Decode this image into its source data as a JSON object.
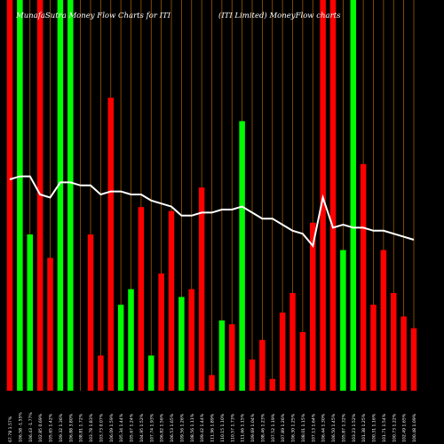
{
  "chart_data": {
    "type": "bar",
    "title_left": "MunafaSutra Money Flow  Charts for ITI",
    "title_right": "(ITI Limited) MoneyFlow charts",
    "bar_range": [
      0,
      100
    ],
    "line_range": [
      0,
      100
    ],
    "grid": "vertical",
    "background": "#000000",
    "colors": {
      "up": "#00ff00",
      "down": "#ff0000",
      "grid": "#a05a00",
      "line": "#ffffff"
    },
    "bars": [
      {
        "value": 100,
        "color": "down"
      },
      {
        "value": 100,
        "color": "up"
      },
      {
        "value": 40,
        "color": "up"
      },
      {
        "value": 100,
        "color": "down"
      },
      {
        "value": 34,
        "color": "down"
      },
      {
        "value": 100,
        "color": "up"
      },
      {
        "value": 100,
        "color": "up"
      },
      {
        "value": 0,
        "color": "up"
      },
      {
        "value": 40,
        "color": "down"
      },
      {
        "value": 9,
        "color": "down"
      },
      {
        "value": 75,
        "color": "down"
      },
      {
        "value": 22,
        "color": "up"
      },
      {
        "value": 26,
        "color": "up"
      },
      {
        "value": 47,
        "color": "down"
      },
      {
        "value": 9,
        "color": "up"
      },
      {
        "value": 30,
        "color": "down"
      },
      {
        "value": 46,
        "color": "down"
      },
      {
        "value": 24,
        "color": "up"
      },
      {
        "value": 26,
        "color": "down"
      },
      {
        "value": 52,
        "color": "down"
      },
      {
        "value": 4,
        "color": "down"
      },
      {
        "value": 18,
        "color": "up"
      },
      {
        "value": 17,
        "color": "down"
      },
      {
        "value": 69,
        "color": "up"
      },
      {
        "value": 8,
        "color": "down"
      },
      {
        "value": 13,
        "color": "down"
      },
      {
        "value": 3,
        "color": "down"
      },
      {
        "value": 20,
        "color": "down"
      },
      {
        "value": 25,
        "color": "down"
      },
      {
        "value": 15,
        "color": "down"
      },
      {
        "value": 43,
        "color": "down"
      },
      {
        "value": 100,
        "color": "down"
      },
      {
        "value": 100,
        "color": "down"
      },
      {
        "value": 36,
        "color": "up"
      },
      {
        "value": 100,
        "color": "up"
      },
      {
        "value": 58,
        "color": "down"
      },
      {
        "value": 22,
        "color": "down"
      },
      {
        "value": 36,
        "color": "down"
      },
      {
        "value": 25,
        "color": "down"
      },
      {
        "value": 19,
        "color": "down"
      },
      {
        "value": 16,
        "color": "down"
      }
    ],
    "line": [
      70,
      71,
      71,
      65,
      64,
      69,
      69,
      68,
      68,
      65,
      66,
      66,
      65,
      65,
      63,
      62,
      61,
      58,
      58,
      59,
      59,
      60,
      60,
      61,
      59,
      57,
      57,
      55,
      53,
      52,
      48,
      64,
      54,
      55,
      54,
      54,
      53,
      53,
      52,
      51,
      50
    ],
    "x_labels": [
      "67.78 1.57%",
      "106.58 -1.55%",
      "106.43 -1.77%",
      "102.85 0.69%",
      "105.65 1.42%",
      "109.32 1.36%",
      "106.88 3.80%",
      "108.81 1.72%",
      "103.78 1.83%",
      "103.73 0.07%",
      "106.09 1.59%",
      "105.34 1.44%",
      "105.67 1.24%",
      "104.95 1.52%",
      "107.74 1.93%",
      "106.82 1.56%",
      "106.53 1.65%",
      "109.56 1.26%",
      "108.56 1.11%",
      "109.42 1.44%",
      "111.96 1.89%",
      "110.15 1.10%",
      "110.57 1.73%",
      "111.66 1.15%",
      "109.69 1.04%",
      "108.46 1.23%",
      "107.52 1.19%",
      "107.89 1.26%",
      "106.30 1.25%",
      "108.01 1.15%",
      "107.13 1.64%",
      "106.44 1.30%",
      "106.50 1.45%",
      "105.87 1.32%",
      "103.23 1.52%",
      "101.38 1.25%",
      "100.31 1.16%",
      "101.71 1.54%",
      "100.73 1.22%",
      "102.49 1.65%",
      "100.48 1.09%"
    ]
  }
}
